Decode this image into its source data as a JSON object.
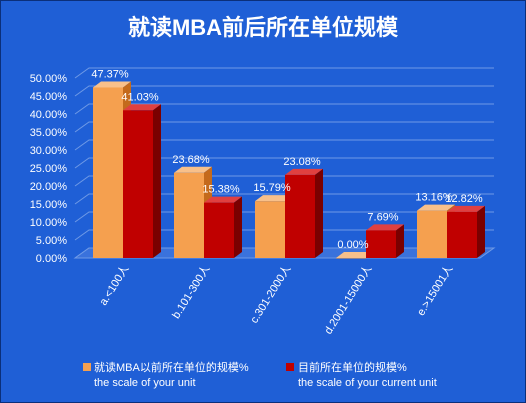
{
  "chart_data": {
    "type": "bar",
    "title": "就读MBA前后所在单位规模",
    "categories": [
      "a.<100人",
      "b.101-300人",
      "c.301-2000人",
      "d.2001-15000人",
      "e.>15001人"
    ],
    "series": [
      {
        "name": "就读MBA以前所在单位的规模%",
        "name_en": "the scale of your unit",
        "values": [
          47.37,
          23.68,
          15.79,
          0.0,
          13.16
        ],
        "labels": [
          "47.37%",
          "23.68%",
          "15.79%",
          "0.00%",
          "13.16%"
        ],
        "color": "#f5a04f"
      },
      {
        "name": "目前所在单位的规模%",
        "name_en": "the scale of your current unit",
        "values": [
          41.03,
          15.38,
          23.08,
          7.69,
          12.82
        ],
        "labels": [
          "41.03%",
          "15.38%",
          "23.08%",
          "7.69%",
          "12.82%"
        ],
        "color": "#c00000"
      }
    ],
    "ylim": [
      0,
      50
    ],
    "yticks": [
      "0.00%",
      "5.00%",
      "10.00%",
      "15.00%",
      "20.00%",
      "25.00%",
      "30.00%",
      "35.00%",
      "40.00%",
      "45.00%",
      "50.00%"
    ],
    "grid": true,
    "legend_position": "bottom",
    "xlabel": "",
    "ylabel": ""
  },
  "colors": {
    "background": "#1f5fd6",
    "text": "#ffffff",
    "orange_side": "#c46a1c",
    "orange_top": "#f8c08a",
    "red_side": "#7a0000",
    "red_top": "#e04040"
  }
}
